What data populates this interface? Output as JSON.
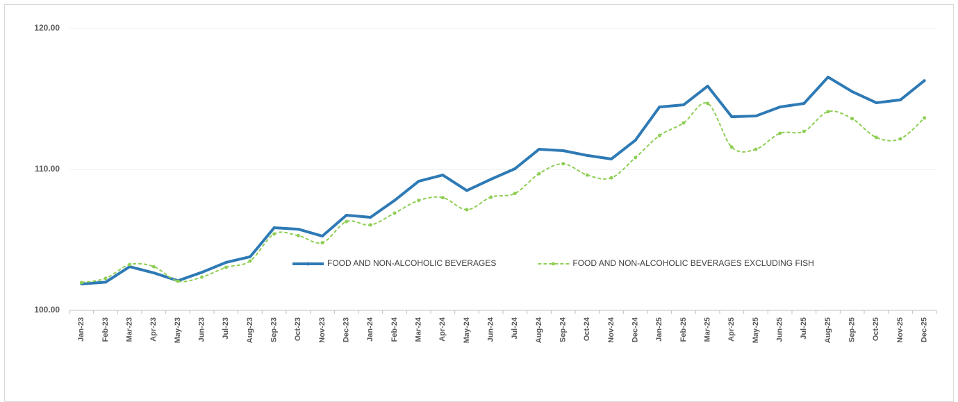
{
  "chart_data": {
    "type": "line",
    "categories": [
      "Jan-23",
      "Feb-23",
      "Mar-23",
      "Apr-23",
      "May-23",
      "Jun-23",
      "Jul-23",
      "Aug-23",
      "Sep-23",
      "Oct-23",
      "Nov-23",
      "Dec-23",
      "Jan-24",
      "Feb-24",
      "Mar-24",
      "Apr-24",
      "May-24",
      "Jun-24",
      "Jul-24",
      "Aug-24",
      "Sep-24",
      "Oct-24",
      "Nov-24",
      "Dec-24",
      "Jan-25",
      "Feb-25",
      "Mar-25",
      "Apr-25",
      "May-25",
      "Jun-25",
      "Jul-25",
      "Aug-25",
      "Sep-25",
      "Oct-25",
      "Nov-25",
      "Dec-25"
    ],
    "series": [
      {
        "name": "FOOD AND NON-ALCOHOLIC BEVERAGES",
        "color": "#2e7ab5",
        "dashed": false,
        "values": [
          101.87,
          102.0,
          103.1,
          102.66,
          102.1,
          102.7,
          103.4,
          103.8,
          105.86,
          105.76,
          105.27,
          106.75,
          106.6,
          107.8,
          109.16,
          109.6,
          108.5,
          109.3,
          110.05,
          111.43,
          111.33,
          110.99,
          110.74,
          112.07,
          114.43,
          114.58,
          115.91,
          113.74,
          113.79,
          114.43,
          114.68,
          116.55,
          115.52,
          114.73,
          114.93,
          116.3
        ]
      },
      {
        "name": "FOOD AND NON-ALCOHOLIC BEVERAGES EXCLUDING FISH",
        "color": "#8fce54",
        "dashed": true,
        "values": [
          101.97,
          102.27,
          103.25,
          103.1,
          102.07,
          102.36,
          103.05,
          103.5,
          105.42,
          105.3,
          104.8,
          106.3,
          106.06,
          106.9,
          107.8,
          108.0,
          107.14,
          108.03,
          108.3,
          109.7,
          110.4,
          109.6,
          109.4,
          110.84,
          112.4,
          113.3,
          114.68,
          111.58,
          111.43,
          112.56,
          112.7,
          114.1,
          113.6,
          112.27,
          112.17,
          113.65
        ]
      }
    ],
    "ylim": [
      100,
      120
    ],
    "yticks": [
      {
        "value": 100,
        "label": "100.00"
      },
      {
        "value": 110,
        "label": "110.00"
      },
      {
        "value": 120,
        "label": "120.00"
      }
    ],
    "grid": true,
    "legend": "center"
  }
}
